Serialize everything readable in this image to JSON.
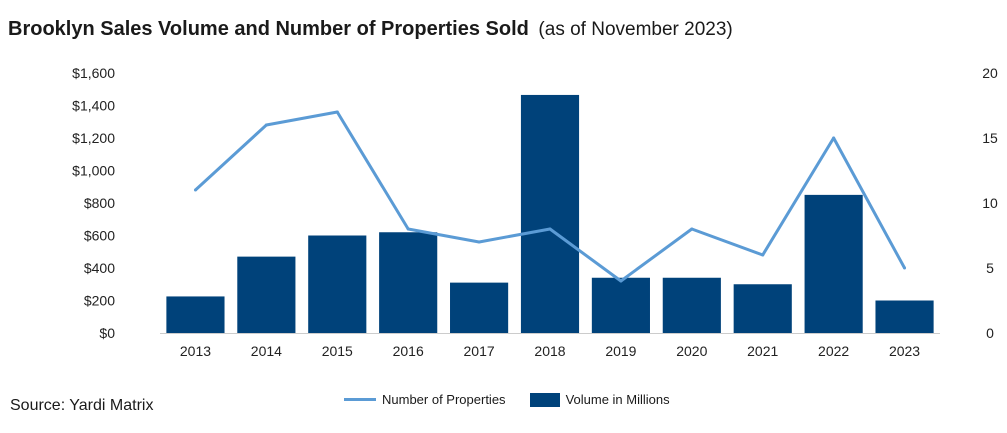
{
  "title": {
    "main": "Brooklyn Sales Volume and Number of Properties Sold",
    "sub": "(as of November 2023)"
  },
  "source": "Source: Yardi Matrix",
  "colors": {
    "bar": "#00427a",
    "line": "#5b9bd5",
    "axis": "#cccccc"
  },
  "chart_data": {
    "type": "bar",
    "categories": [
      "2013",
      "2014",
      "2015",
      "2016",
      "2017",
      "2018",
      "2019",
      "2020",
      "2021",
      "2022",
      "2023"
    ],
    "series": [
      {
        "name": "Volume in Millions",
        "type": "bar",
        "axis": "left",
        "values": [
          225,
          470,
          600,
          620,
          310,
          1465,
          340,
          340,
          300,
          850,
          200
        ]
      },
      {
        "name": "Number of Properties",
        "type": "line",
        "axis": "right",
        "values": [
          11,
          16,
          17,
          8,
          7,
          8,
          4,
          8,
          6,
          15,
          5
        ]
      }
    ],
    "y_left": {
      "lim": [
        0,
        1600
      ],
      "ticks": [
        0,
        200,
        400,
        600,
        800,
        1000,
        1200,
        1400,
        1600
      ],
      "tick_labels": [
        "$0",
        "$200",
        "$400",
        "$600",
        "$800",
        "$1,000",
        "$1,200",
        "$1,400",
        "$1,600"
      ]
    },
    "y_right": {
      "lim": [
        0,
        20
      ],
      "ticks": [
        0,
        5,
        10,
        15,
        20
      ],
      "tick_labels": [
        "0",
        "5",
        "10",
        "15",
        "20"
      ]
    },
    "legend_position": "bottom",
    "grid": false
  }
}
